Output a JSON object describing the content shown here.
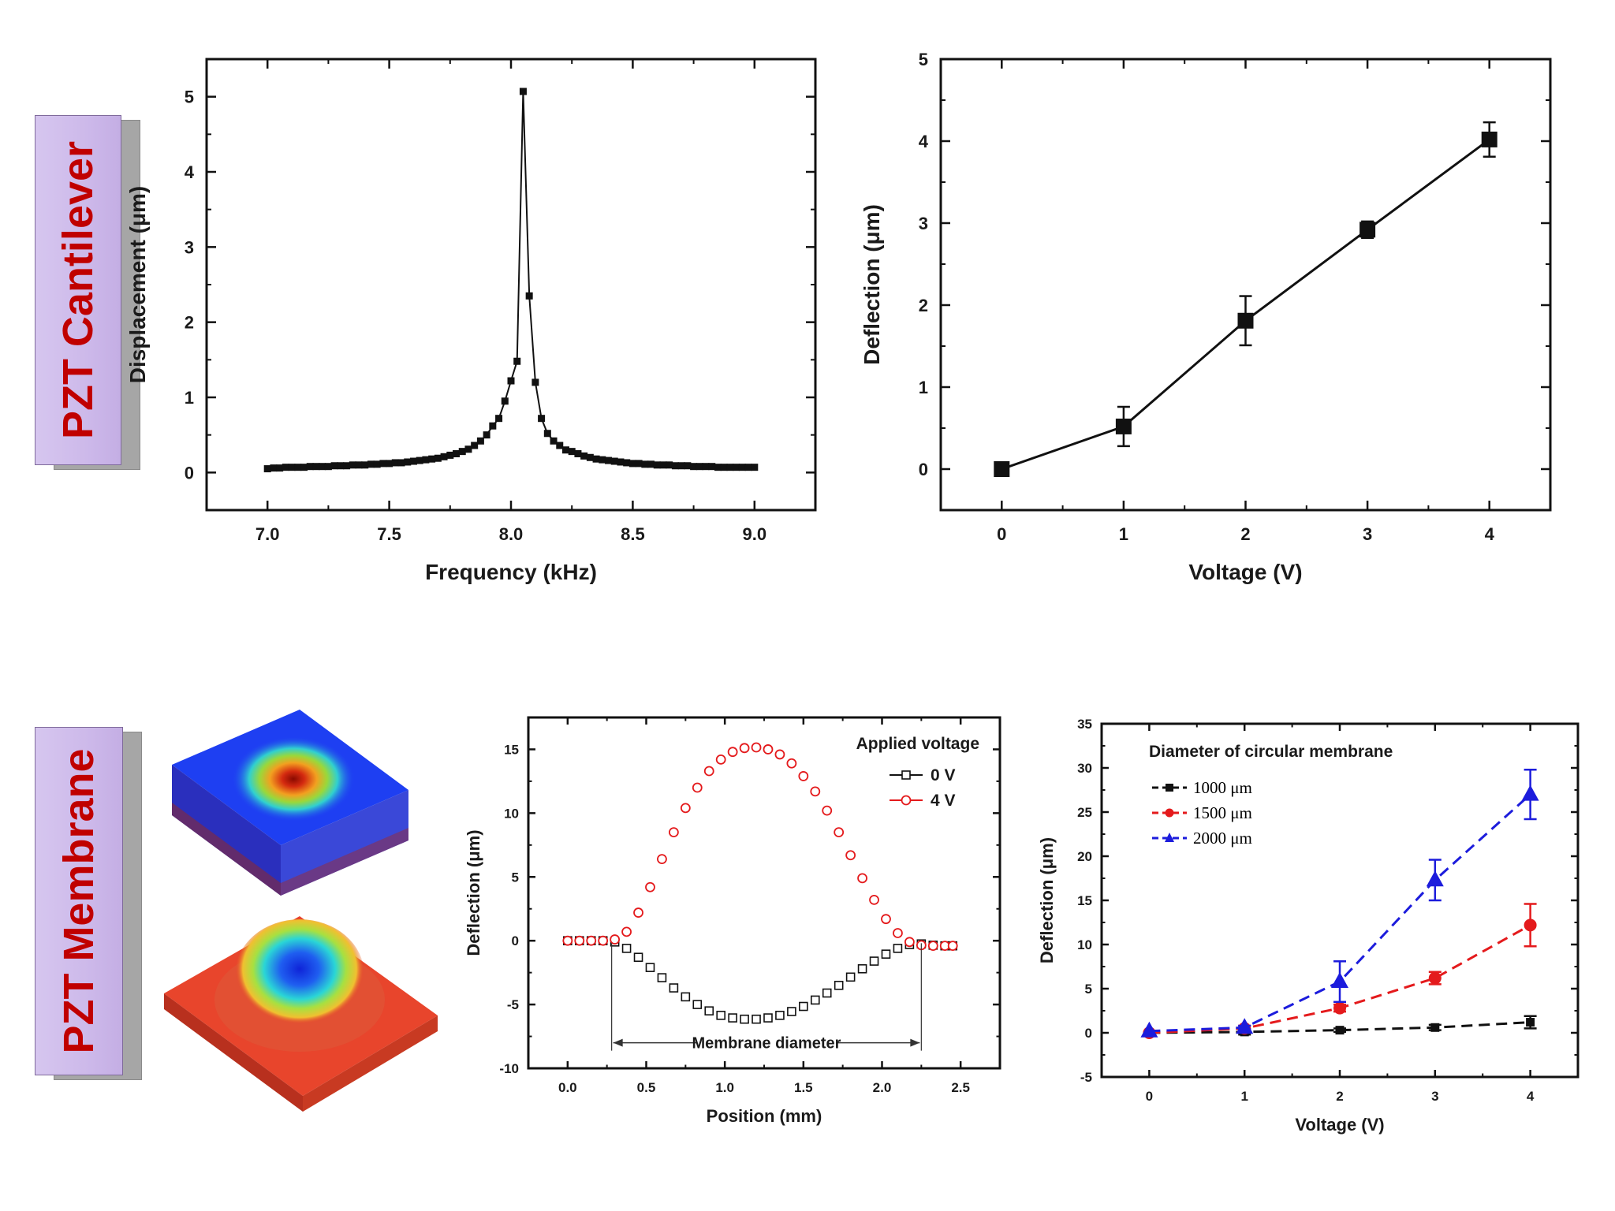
{
  "section_labels": {
    "top": "PZT Cantilever",
    "bottom": "PZT Membrane"
  },
  "colors": {
    "label_text": "#c00000",
    "label_fill": "#cdb9ea",
    "black_series": "#111111",
    "red_series": "#e41a1c",
    "blue_series": "#1c1cdc"
  },
  "chart_data": [
    {
      "type": "line",
      "xlabel": "Frequency (kHz)",
      "ylabel": "Displacement (μm)",
      "xlim": [
        6.75,
        9.25
      ],
      "ylim": [
        -0.5,
        5.5
      ],
      "xticks": [
        "7.0",
        "7.5",
        "8.0",
        "8.5",
        "9.0"
      ],
      "xtick_values": [
        7.0,
        7.5,
        8.0,
        8.5,
        9.0
      ],
      "yticks": [
        "0",
        "1",
        "2",
        "3",
        "4",
        "5"
      ],
      "ytick_values": [
        0,
        1,
        2,
        3,
        4,
        5
      ],
      "marker": "square",
      "series": [
        {
          "x": [
            7.0,
            7.025,
            7.05,
            7.075,
            7.1,
            7.125,
            7.15,
            7.175,
            7.2,
            7.225,
            7.25,
            7.275,
            7.3,
            7.325,
            7.35,
            7.375,
            7.4,
            7.425,
            7.45,
            7.475,
            7.5,
            7.525,
            7.55,
            7.575,
            7.6,
            7.625,
            7.65,
            7.675,
            7.7,
            7.725,
            7.75,
            7.775,
            7.8,
            7.825,
            7.85,
            7.875,
            7.9,
            7.925,
            7.95,
            7.975,
            8.0,
            8.025,
            8.05,
            8.075,
            8.1,
            8.125,
            8.15,
            8.175,
            8.2,
            8.225,
            8.25,
            8.275,
            8.3,
            8.325,
            8.35,
            8.375,
            8.4,
            8.425,
            8.45,
            8.475,
            8.5,
            8.525,
            8.55,
            8.575,
            8.6,
            8.625,
            8.65,
            8.675,
            8.7,
            8.725,
            8.75,
            8.775,
            8.8,
            8.825,
            8.85,
            8.875,
            8.9,
            8.925,
            8.95,
            8.975,
            9.0
          ],
          "y": [
            0.05,
            0.06,
            0.06,
            0.07,
            0.07,
            0.07,
            0.07,
            0.08,
            0.08,
            0.08,
            0.08,
            0.09,
            0.09,
            0.09,
            0.1,
            0.1,
            0.1,
            0.11,
            0.11,
            0.12,
            0.12,
            0.13,
            0.13,
            0.14,
            0.15,
            0.16,
            0.17,
            0.18,
            0.19,
            0.21,
            0.23,
            0.25,
            0.28,
            0.31,
            0.36,
            0.42,
            0.5,
            0.62,
            0.72,
            0.95,
            1.22,
            1.48,
            5.07,
            2.35,
            1.2,
            0.72,
            0.52,
            0.42,
            0.36,
            0.3,
            0.28,
            0.25,
            0.22,
            0.2,
            0.18,
            0.17,
            0.16,
            0.15,
            0.14,
            0.13,
            0.12,
            0.12,
            0.11,
            0.11,
            0.1,
            0.1,
            0.1,
            0.09,
            0.09,
            0.09,
            0.08,
            0.08,
            0.08,
            0.08,
            0.07,
            0.07,
            0.07,
            0.07,
            0.07,
            0.07,
            0.07
          ]
        }
      ]
    },
    {
      "type": "line",
      "xlabel": "Voltage (V)",
      "ylabel": "Deflection (μm)",
      "xlim": [
        -0.5,
        4.5
      ],
      "ylim": [
        -0.5,
        5
      ],
      "xticks": [
        "0",
        "1",
        "2",
        "3",
        "4"
      ],
      "xtick_values": [
        0,
        1,
        2,
        3,
        4
      ],
      "yticks": [
        "0",
        "1",
        "2",
        "3",
        "4",
        "5"
      ],
      "ytick_values": [
        0,
        1,
        2,
        3,
        4,
        5
      ],
      "marker": "square",
      "series": [
        {
          "x": [
            0,
            1,
            2,
            3,
            4
          ],
          "y": [
            0,
            0.52,
            1.81,
            2.92,
            4.02
          ],
          "err": [
            0.04,
            0.24,
            0.3,
            0.1,
            0.21
          ]
        }
      ]
    },
    {
      "type": "line",
      "xlabel": "Position (mm)",
      "ylabel": "Deflection (μm)",
      "xlim": [
        -0.25,
        2.75
      ],
      "ylim": [
        -10,
        17.5
      ],
      "xticks": [
        "0.0",
        "0.5",
        "1.0",
        "1.5",
        "2.0",
        "2.5"
      ],
      "xtick_values": [
        0,
        0.5,
        1.0,
        1.5,
        2.0,
        2.5
      ],
      "yticks": [
        "-10",
        "-5",
        "0",
        "5",
        "10",
        "15"
      ],
      "ytick_values": [
        -10,
        -5,
        0,
        5,
        10,
        15
      ],
      "legend_title": "Applied voltage",
      "legend_position": "top-right",
      "annotation": "Membrane diameter",
      "annotation_range": [
        0.28,
        2.25
      ],
      "series": [
        {
          "name": "0 V",
          "marker": "open-square",
          "color": "#111111",
          "x": [
            0.0,
            0.075,
            0.15,
            0.225,
            0.3,
            0.375,
            0.45,
            0.525,
            0.6,
            0.675,
            0.75,
            0.825,
            0.9,
            0.975,
            1.05,
            1.125,
            1.2,
            1.275,
            1.35,
            1.425,
            1.5,
            1.575,
            1.65,
            1.725,
            1.8,
            1.875,
            1.95,
            2.025,
            2.1,
            2.175,
            2.25,
            2.325,
            2.4,
            2.45
          ],
          "y": [
            0,
            0,
            0,
            0,
            -0.1,
            -0.6,
            -1.3,
            -2.1,
            -2.9,
            -3.7,
            -4.4,
            -5.0,
            -5.5,
            -5.85,
            -6.05,
            -6.15,
            -6.15,
            -6.05,
            -5.85,
            -5.55,
            -5.15,
            -4.65,
            -4.1,
            -3.5,
            -2.85,
            -2.2,
            -1.6,
            -1.05,
            -0.6,
            -0.3,
            -0.25,
            -0.35,
            -0.4,
            -0.4
          ]
        },
        {
          "name": "4 V",
          "marker": "open-circle",
          "color": "#e41a1c",
          "x": [
            0.0,
            0.075,
            0.15,
            0.225,
            0.3,
            0.375,
            0.45,
            0.525,
            0.6,
            0.675,
            0.75,
            0.825,
            0.9,
            0.975,
            1.05,
            1.125,
            1.2,
            1.275,
            1.35,
            1.425,
            1.5,
            1.575,
            1.65,
            1.725,
            1.8,
            1.875,
            1.95,
            2.025,
            2.1,
            2.175,
            2.25,
            2.325,
            2.4,
            2.45
          ],
          "y": [
            0,
            0,
            0,
            0,
            0.1,
            0.7,
            2.2,
            4.2,
            6.4,
            8.5,
            10.4,
            12.0,
            13.3,
            14.2,
            14.8,
            15.1,
            15.15,
            15.0,
            14.6,
            13.9,
            12.9,
            11.7,
            10.2,
            8.5,
            6.7,
            4.9,
            3.2,
            1.7,
            0.6,
            -0.1,
            -0.35,
            -0.4,
            -0.4,
            -0.4
          ]
        }
      ]
    },
    {
      "type": "line",
      "xlabel": "Voltage (V)",
      "ylabel": "Deflection (μm)",
      "xlim": [
        -0.5,
        4.5
      ],
      "ylim": [
        -5,
        35
      ],
      "xticks": [
        "0",
        "1",
        "2",
        "3",
        "4"
      ],
      "xtick_values": [
        0,
        1,
        2,
        3,
        4
      ],
      "yticks": [
        "-5",
        "0",
        "5",
        "10",
        "15",
        "20",
        "25",
        "30",
        "35"
      ],
      "ytick_values": [
        -5,
        0,
        5,
        10,
        15,
        20,
        25,
        30,
        35
      ],
      "legend_title": "Diameter of circular membrane",
      "legend_position": "top-left",
      "series": [
        {
          "name": "1000 μm",
          "marker": "square",
          "color": "#111111",
          "x": [
            0,
            1,
            2,
            3,
            4
          ],
          "y": [
            0,
            0.1,
            0.3,
            0.6,
            1.2
          ],
          "err": [
            0,
            0.3,
            0.2,
            0.3,
            0.7
          ]
        },
        {
          "name": "1500 μm",
          "marker": "circle",
          "color": "#e41a1c",
          "x": [
            0,
            1,
            2,
            3,
            4
          ],
          "y": [
            0,
            0.5,
            2.8,
            6.2,
            12.2
          ],
          "err": [
            0,
            0.3,
            0.4,
            0.7,
            2.4
          ]
        },
        {
          "name": "2000 μm",
          "marker": "triangle",
          "color": "#1c1cdc",
          "x": [
            0,
            1,
            2,
            3,
            4
          ],
          "y": [
            0.2,
            0.6,
            5.8,
            17.3,
            27.0
          ],
          "err": [
            0,
            0.2,
            2.3,
            2.3,
            2.8
          ]
        }
      ]
    }
  ]
}
